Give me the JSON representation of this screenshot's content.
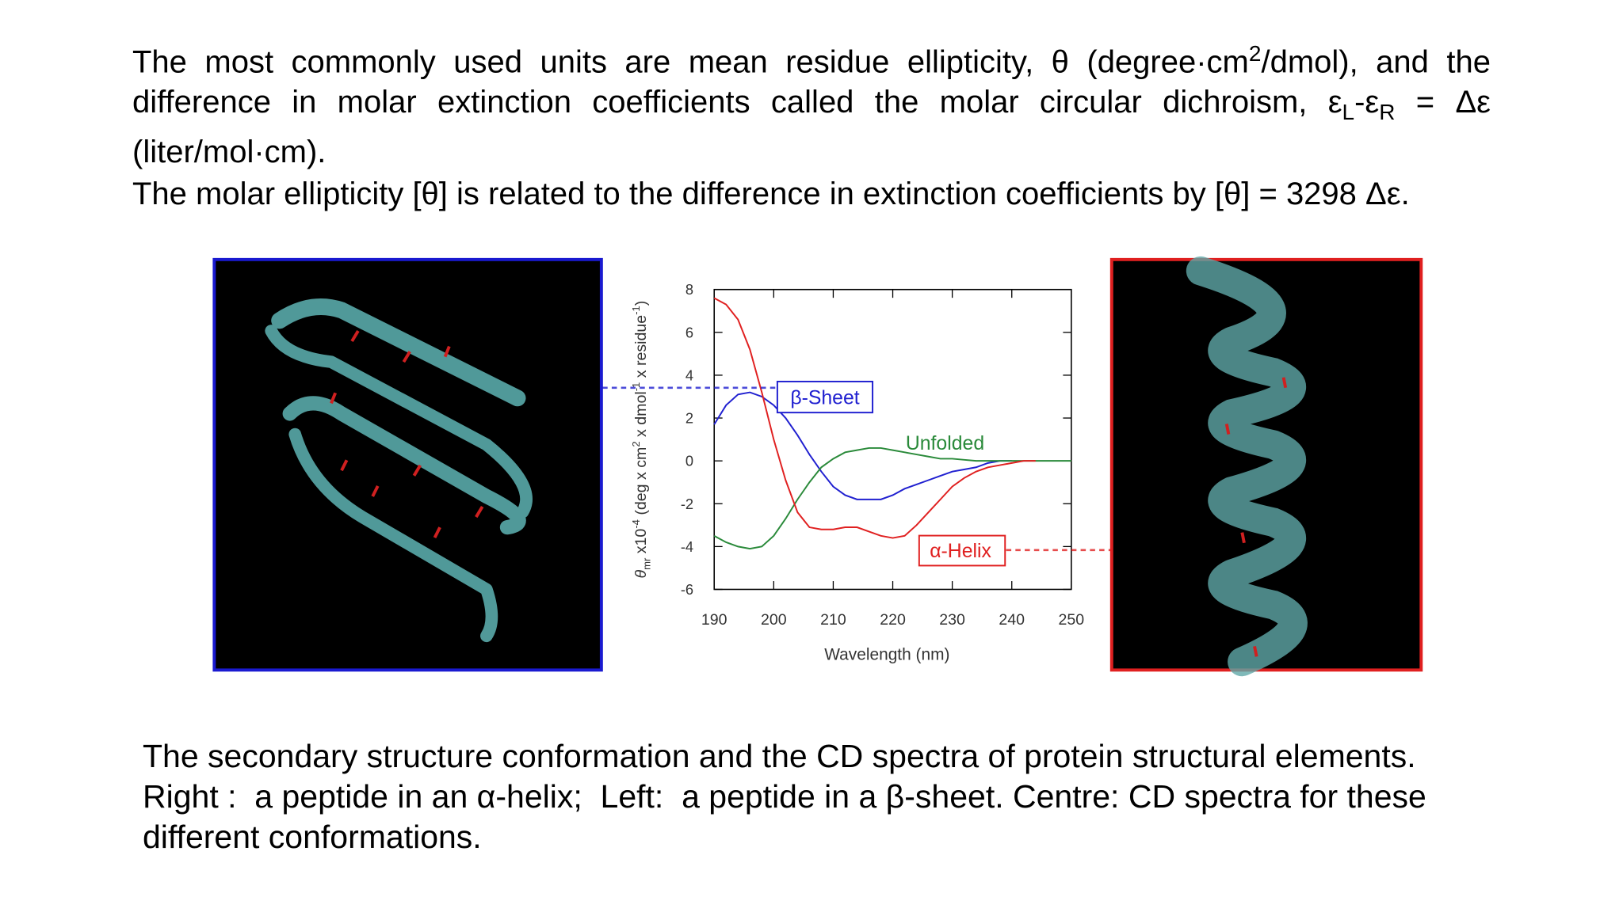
{
  "paragraphs": [
    [
      "The most commonly used units are mean residue ellipticity, θ (degree·cm",
      "2",
      "/dmol), and the difference in molar extinction coefficients called the molar circular dichroism, ε",
      "L",
      "-ε",
      "R",
      " = Δε (liter/mol·cm)."
    ],
    [
      "The molar ellipticity [θ] is related to the difference in extinction coefficients by [θ] = 3298 Δε."
    ]
  ],
  "chart_data": {
    "type": "line",
    "xlabel": "Wavelength (nm)",
    "ylabel": [
      "θ",
      "mr",
      " x10",
      "-4",
      " (deg x cm",
      "2",
      " x dmol",
      "-1",
      " x residue",
      "-1",
      ")"
    ],
    "x": [
      190,
      192,
      194,
      196,
      198,
      200,
      202,
      204,
      206,
      208,
      210,
      212,
      214,
      216,
      218,
      220,
      222,
      224,
      226,
      228,
      230,
      232,
      234,
      236,
      238,
      240,
      242,
      244,
      246,
      248,
      250
    ],
    "series": [
      {
        "name": "β-Sheet",
        "color": "#2020d0",
        "values": [
          1.7,
          2.6,
          3.1,
          3.2,
          3.0,
          2.6,
          2.0,
          1.2,
          0.3,
          -0.5,
          -1.2,
          -1.6,
          -1.8,
          -1.8,
          -1.8,
          -1.6,
          -1.3,
          -1.1,
          -0.9,
          -0.7,
          -0.5,
          -0.4,
          -0.3,
          -0.1,
          0,
          0,
          null,
          null,
          null,
          null,
          null
        ]
      },
      {
        "name": "Unfolded",
        "color": "#2a8a3a",
        "values": [
          -3.5,
          -3.8,
          -4.0,
          -4.1,
          -4.0,
          -3.5,
          -2.7,
          -1.8,
          -1.0,
          -0.3,
          0.1,
          0.4,
          0.5,
          0.6,
          0.6,
          0.5,
          0.4,
          0.3,
          0.2,
          0.1,
          0.1,
          0.05,
          0,
          0,
          0,
          0,
          0,
          0,
          0,
          0,
          0
        ]
      },
      {
        "name": "α-Helix",
        "color": "#e02020",
        "values": [
          7.6,
          7.3,
          6.6,
          5.2,
          3.2,
          1.0,
          -0.9,
          -2.4,
          -3.1,
          -3.2,
          -3.2,
          -3.1,
          -3.1,
          -3.3,
          -3.5,
          -3.6,
          -3.5,
          -3.0,
          -2.4,
          -1.8,
          -1.2,
          -0.8,
          -0.5,
          -0.3,
          -0.2,
          -0.1,
          0,
          0,
          null,
          null,
          null
        ]
      }
    ],
    "xlim": [
      190,
      250
    ],
    "xticks": [
      190,
      200,
      210,
      220,
      230,
      240,
      250
    ],
    "ylim": [
      -6,
      8
    ],
    "yticks": [
      -6,
      -4,
      -2,
      0,
      2,
      4,
      6,
      8
    ]
  },
  "caption": [
    "The secondary structure conformation and the CD spectra of protein structural elements.",
    "Right :  a peptide in an α-helix;  Left:  a peptide in a β-sheet. Centre: CD spectra for these",
    "different conformations."
  ]
}
